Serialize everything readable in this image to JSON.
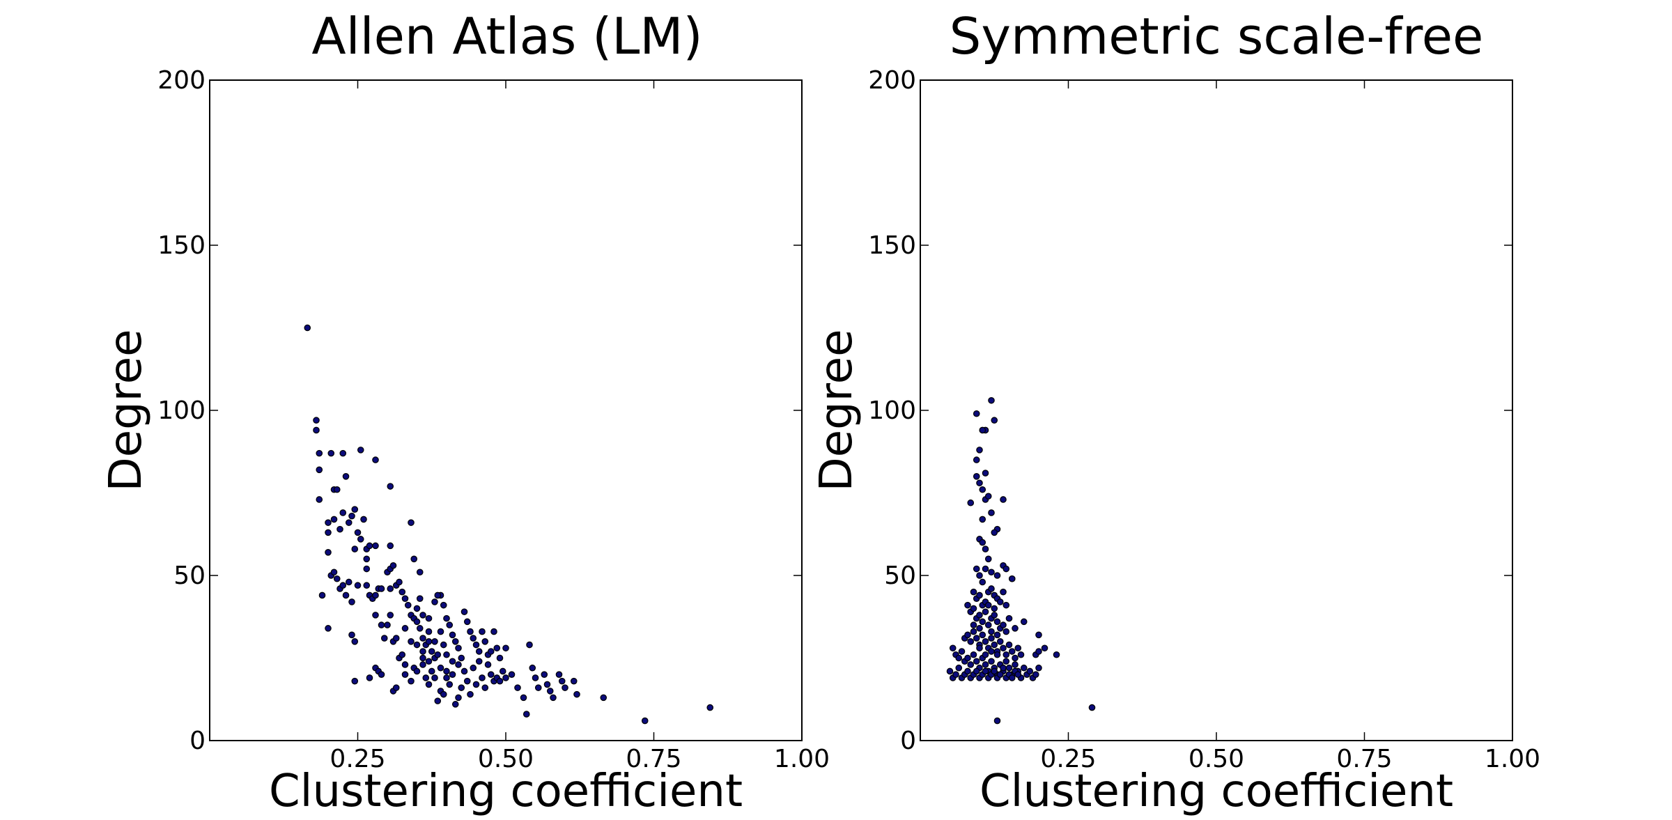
{
  "colors": {
    "marker": "#0b0b7a",
    "marker_edge": "#000000",
    "axes": "#000000"
  },
  "chart_data": [
    {
      "type": "scatter",
      "title": "Allen Atlas (LM)",
      "xlabel": "Clustering coefficient",
      "ylabel": "Degree",
      "xlim": [
        0,
        1.0
      ],
      "ylim": [
        0,
        200
      ],
      "xticks": [
        0.25,
        0.5,
        0.75,
        1.0
      ],
      "xtick_labels": [
        "0.25",
        "0.50",
        "0.75",
        "1.00"
      ],
      "yticks": [
        0,
        50,
        100,
        150,
        200
      ],
      "ytick_labels": [
        "0",
        "50",
        "100",
        "150",
        "200"
      ],
      "grid": false,
      "points": [
        [
          0.165,
          125
        ],
        [
          0.18,
          97
        ],
        [
          0.18,
          94
        ],
        [
          0.185,
          87
        ],
        [
          0.185,
          82
        ],
        [
          0.185,
          73
        ],
        [
          0.205,
          87
        ],
        [
          0.21,
          76
        ],
        [
          0.225,
          87
        ],
        [
          0.255,
          88
        ],
        [
          0.28,
          85
        ],
        [
          0.215,
          76
        ],
        [
          0.23,
          80
        ],
        [
          0.2,
          66
        ],
        [
          0.21,
          67
        ],
        [
          0.22,
          64
        ],
        [
          0.225,
          69
        ],
        [
          0.235,
          66
        ],
        [
          0.24,
          68
        ],
        [
          0.245,
          70
        ],
        [
          0.25,
          63
        ],
        [
          0.255,
          61
        ],
        [
          0.26,
          67
        ],
        [
          0.265,
          58
        ],
        [
          0.27,
          59
        ],
        [
          0.28,
          59
        ],
        [
          0.265,
          55
        ],
        [
          0.245,
          58
        ],
        [
          0.2,
          63
        ],
        [
          0.2,
          57
        ],
        [
          0.205,
          50
        ],
        [
          0.21,
          51
        ],
        [
          0.215,
          49
        ],
        [
          0.22,
          46
        ],
        [
          0.225,
          47
        ],
        [
          0.23,
          44
        ],
        [
          0.235,
          48
        ],
        [
          0.24,
          42
        ],
        [
          0.25,
          47
        ],
        [
          0.265,
          52
        ],
        [
          0.265,
          47
        ],
        [
          0.27,
          44
        ],
        [
          0.275,
          43
        ],
        [
          0.28,
          44
        ],
        [
          0.285,
          46
        ],
        [
          0.29,
          46
        ],
        [
          0.3,
          51
        ],
        [
          0.305,
          52
        ],
        [
          0.305,
          46
        ],
        [
          0.31,
          53
        ],
        [
          0.315,
          47
        ],
        [
          0.32,
          48
        ],
        [
          0.325,
          45
        ],
        [
          0.33,
          43
        ],
        [
          0.305,
          77
        ],
        [
          0.34,
          66
        ],
        [
          0.305,
          59
        ],
        [
          0.345,
          55
        ],
        [
          0.355,
          51
        ],
        [
          0.19,
          44
        ],
        [
          0.2,
          34
        ],
        [
          0.24,
          32
        ],
        [
          0.245,
          30
        ],
        [
          0.245,
          18
        ],
        [
          0.27,
          19
        ],
        [
          0.28,
          22
        ],
        [
          0.285,
          21
        ],
        [
          0.29,
          20
        ],
        [
          0.28,
          38
        ],
        [
          0.29,
          35
        ],
        [
          0.295,
          31
        ],
        [
          0.3,
          35
        ],
        [
          0.305,
          38
        ],
        [
          0.31,
          30
        ],
        [
          0.315,
          31
        ],
        [
          0.32,
          25
        ],
        [
          0.325,
          26
        ],
        [
          0.33,
          23
        ],
        [
          0.335,
          41
        ],
        [
          0.34,
          38
        ],
        [
          0.345,
          37
        ],
        [
          0.35,
          36
        ],
        [
          0.355,
          34
        ],
        [
          0.36,
          31
        ],
        [
          0.365,
          29
        ],
        [
          0.37,
          30
        ],
        [
          0.375,
          27
        ],
        [
          0.38,
          25
        ],
        [
          0.385,
          26
        ],
        [
          0.39,
          44
        ],
        [
          0.395,
          41
        ],
        [
          0.4,
          37
        ],
        [
          0.405,
          35
        ],
        [
          0.41,
          32
        ],
        [
          0.415,
          30
        ],
        [
          0.42,
          28
        ],
        [
          0.425,
          25
        ],
        [
          0.43,
          39
        ],
        [
          0.435,
          36
        ],
        [
          0.44,
          33
        ],
        [
          0.445,
          31
        ],
        [
          0.45,
          29
        ],
        [
          0.455,
          27
        ],
        [
          0.46,
          33
        ],
        [
          0.465,
          30
        ],
        [
          0.47,
          26
        ],
        [
          0.475,
          27
        ],
        [
          0.48,
          33
        ],
        [
          0.485,
          28
        ],
        [
          0.49,
          25
        ],
        [
          0.495,
          21
        ],
        [
          0.5,
          28
        ],
        [
          0.31,
          15
        ],
        [
          0.315,
          16
        ],
        [
          0.33,
          20
        ],
        [
          0.34,
          18
        ],
        [
          0.345,
          22
        ],
        [
          0.35,
          21
        ],
        [
          0.36,
          23
        ],
        [
          0.365,
          19
        ],
        [
          0.37,
          17
        ],
        [
          0.375,
          21
        ],
        [
          0.38,
          19
        ],
        [
          0.385,
          12
        ],
        [
          0.39,
          15
        ],
        [
          0.395,
          14
        ],
        [
          0.4,
          19
        ],
        [
          0.405,
          17
        ],
        [
          0.41,
          20
        ],
        [
          0.415,
          11
        ],
        [
          0.42,
          13
        ],
        [
          0.425,
          16
        ],
        [
          0.43,
          21
        ],
        [
          0.435,
          18
        ],
        [
          0.44,
          14
        ],
        [
          0.445,
          22
        ],
        [
          0.45,
          17
        ],
        [
          0.455,
          24
        ],
        [
          0.46,
          19
        ],
        [
          0.465,
          16
        ],
        [
          0.47,
          23
        ],
        [
          0.475,
          20
        ],
        [
          0.48,
          18
        ],
        [
          0.485,
          19
        ],
        [
          0.49,
          18
        ],
        [
          0.5,
          19
        ],
        [
          0.51,
          20
        ],
        [
          0.52,
          16
        ],
        [
          0.53,
          13
        ],
        [
          0.535,
          8
        ],
        [
          0.54,
          29
        ],
        [
          0.545,
          22
        ],
        [
          0.55,
          19
        ],
        [
          0.555,
          16
        ],
        [
          0.565,
          20
        ],
        [
          0.57,
          17
        ],
        [
          0.575,
          15
        ],
        [
          0.58,
          13
        ],
        [
          0.59,
          20
        ],
        [
          0.595,
          18
        ],
        [
          0.6,
          16
        ],
        [
          0.615,
          18
        ],
        [
          0.62,
          14
        ],
        [
          0.665,
          13
        ],
        [
          0.735,
          6
        ],
        [
          0.845,
          10
        ],
        [
          0.35,
          40
        ],
        [
          0.355,
          43
        ],
        [
          0.36,
          38
        ],
        [
          0.37,
          37
        ],
        [
          0.38,
          42
        ],
        [
          0.385,
          44
        ],
        [
          0.39,
          33
        ],
        [
          0.395,
          29
        ],
        [
          0.4,
          26
        ],
        [
          0.36,
          27
        ],
        [
          0.37,
          33
        ],
        [
          0.38,
          30
        ],
        [
          0.39,
          22
        ],
        [
          0.4,
          21
        ],
        [
          0.41,
          24
        ],
        [
          0.42,
          23
        ],
        [
          0.33,
          34
        ],
        [
          0.34,
          30
        ],
        [
          0.35,
          29
        ],
        [
          0.36,
          25
        ],
        [
          0.37,
          24
        ]
      ]
    },
    {
      "type": "scatter",
      "title": "Symmetric scale-free",
      "xlabel": "Clustering coefficient",
      "ylabel": "Degree",
      "xlim": [
        0,
        1.0
      ],
      "ylim": [
        0,
        200
      ],
      "xticks": [
        0.25,
        0.5,
        0.75,
        1.0
      ],
      "xtick_labels": [
        "0.25",
        "0.50",
        "0.75",
        "1.00"
      ],
      "yticks": [
        0,
        50,
        100,
        150,
        200
      ],
      "ytick_labels": [
        "0",
        "50",
        "100",
        "150",
        "200"
      ],
      "grid": false,
      "points": [
        [
          0.12,
          103
        ],
        [
          0.095,
          99
        ],
        [
          0.11,
          94
        ],
        [
          0.105,
          94
        ],
        [
          0.125,
          97
        ],
        [
          0.1,
          88
        ],
        [
          0.095,
          85
        ],
        [
          0.11,
          81
        ],
        [
          0.095,
          80
        ],
        [
          0.1,
          78
        ],
        [
          0.105,
          76
        ],
        [
          0.11,
          73
        ],
        [
          0.085,
          72
        ],
        [
          0.115,
          74
        ],
        [
          0.14,
          73
        ],
        [
          0.12,
          69
        ],
        [
          0.105,
          67
        ],
        [
          0.13,
          64
        ],
        [
          0.125,
          63
        ],
        [
          0.1,
          61
        ],
        [
          0.105,
          60
        ],
        [
          0.11,
          58
        ],
        [
          0.115,
          55
        ],
        [
          0.095,
          52
        ],
        [
          0.1,
          50
        ],
        [
          0.105,
          48
        ],
        [
          0.11,
          52
        ],
        [
          0.12,
          51
        ],
        [
          0.13,
          50
        ],
        [
          0.14,
          53
        ],
        [
          0.145,
          52
        ],
        [
          0.155,
          49
        ],
        [
          0.09,
          45
        ],
        [
          0.095,
          43
        ],
        [
          0.1,
          44
        ],
        [
          0.105,
          41
        ],
        [
          0.11,
          42
        ],
        [
          0.115,
          45
        ],
        [
          0.12,
          46
        ],
        [
          0.125,
          44
        ],
        [
          0.13,
          43
        ],
        [
          0.135,
          42
        ],
        [
          0.14,
          45
        ],
        [
          0.145,
          41
        ],
        [
          0.08,
          41
        ],
        [
          0.085,
          39
        ],
        [
          0.09,
          40
        ],
        [
          0.095,
          37
        ],
        [
          0.1,
          38
        ],
        [
          0.105,
          36
        ],
        [
          0.11,
          39
        ],
        [
          0.115,
          35
        ],
        [
          0.12,
          37
        ],
        [
          0.125,
          38
        ],
        [
          0.13,
          36
        ],
        [
          0.135,
          34
        ],
        [
          0.14,
          35
        ],
        [
          0.145,
          33
        ],
        [
          0.15,
          37
        ],
        [
          0.16,
          34
        ],
        [
          0.075,
          31
        ],
        [
          0.08,
          32
        ],
        [
          0.085,
          30
        ],
        [
          0.09,
          33
        ],
        [
          0.095,
          31
        ],
        [
          0.1,
          29
        ],
        [
          0.105,
          32
        ],
        [
          0.11,
          30
        ],
        [
          0.115,
          28
        ],
        [
          0.12,
          31
        ],
        [
          0.125,
          29
        ],
        [
          0.13,
          27
        ],
        [
          0.135,
          30
        ],
        [
          0.14,
          28
        ],
        [
          0.145,
          26
        ],
        [
          0.15,
          29
        ],
        [
          0.155,
          27
        ],
        [
          0.16,
          25
        ],
        [
          0.165,
          28
        ],
        [
          0.17,
          26
        ],
        [
          0.055,
          28
        ],
        [
          0.06,
          26
        ],
        [
          0.065,
          25
        ],
        [
          0.07,
          27
        ],
        [
          0.075,
          24
        ],
        [
          0.08,
          25
        ],
        [
          0.085,
          23
        ],
        [
          0.09,
          26
        ],
        [
          0.095,
          24
        ],
        [
          0.1,
          22
        ],
        [
          0.105,
          25
        ],
        [
          0.11,
          23
        ],
        [
          0.115,
          21
        ],
        [
          0.12,
          24
        ],
        [
          0.125,
          22
        ],
        [
          0.13,
          20
        ],
        [
          0.135,
          23
        ],
        [
          0.14,
          21
        ],
        [
          0.145,
          24
        ],
        [
          0.15,
          22
        ],
        [
          0.155,
          20
        ],
        [
          0.16,
          23
        ],
        [
          0.165,
          21
        ],
        [
          0.17,
          19
        ],
        [
          0.175,
          22
        ],
        [
          0.18,
          20
        ],
        [
          0.185,
          21
        ],
        [
          0.19,
          19
        ],
        [
          0.05,
          21
        ],
        [
          0.055,
          19
        ],
        [
          0.06,
          20
        ],
        [
          0.065,
          22
        ],
        [
          0.07,
          19
        ],
        [
          0.075,
          20
        ],
        [
          0.08,
          21
        ],
        [
          0.085,
          19
        ],
        [
          0.09,
          20
        ],
        [
          0.095,
          21
        ],
        [
          0.1,
          19
        ],
        [
          0.105,
          20
        ],
        [
          0.11,
          21
        ],
        [
          0.115,
          19
        ],
        [
          0.12,
          20
        ],
        [
          0.125,
          21
        ],
        [
          0.13,
          19
        ],
        [
          0.135,
          20
        ],
        [
          0.14,
          22
        ],
        [
          0.145,
          19
        ],
        [
          0.15,
          20
        ],
        [
          0.155,
          19
        ],
        [
          0.16,
          21
        ],
        [
          0.165,
          20
        ],
        [
          0.195,
          26
        ],
        [
          0.2,
          27
        ],
        [
          0.21,
          28
        ],
        [
          0.2,
          32
        ],
        [
          0.23,
          26
        ],
        [
          0.2,
          22
        ],
        [
          0.195,
          20
        ],
        [
          0.175,
          36
        ],
        [
          0.155,
          49
        ],
        [
          0.13,
          6
        ],
        [
          0.29,
          10
        ],
        [
          0.1,
          28
        ],
        [
          0.11,
          26
        ],
        [
          0.12,
          27
        ],
        [
          0.13,
          26
        ],
        [
          0.12,
          33
        ],
        [
          0.13,
          32
        ],
        [
          0.09,
          35
        ],
        [
          0.1,
          34
        ],
        [
          0.115,
          41
        ],
        [
          0.125,
          40
        ]
      ]
    }
  ]
}
